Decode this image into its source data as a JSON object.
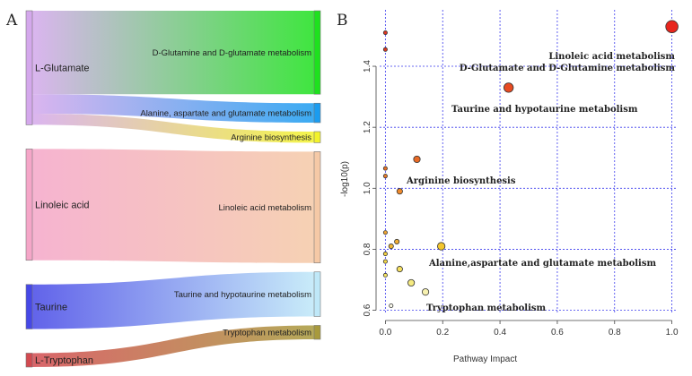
{
  "panels": {
    "a_letter": "A",
    "b_letter": "B"
  },
  "chart_data": [
    {
      "type": "sankey",
      "sources": [
        {
          "label": "L-Glutamate",
          "color": "#d4a8ec"
        },
        {
          "label": "Linoleic acid",
          "color": "#f5a6c8"
        },
        {
          "label": "Taurine",
          "color": "#4648e6"
        },
        {
          "label": "L-Tryptophan",
          "color": "#d24a50"
        }
      ],
      "targets": [
        {
          "label": "D-Glutamine and D-glutamate metabolism",
          "color": "#1ee11e"
        },
        {
          "label": "Alanine, aspartate and glutamate metabolism",
          "color": "#1a9cf0"
        },
        {
          "label": "Arginine biosynthesis",
          "color": "#f2f22a"
        },
        {
          "label": "Linoleic acid metabolism",
          "color": "#f5c9a6"
        },
        {
          "label": "Taurine and hypotaurine metabolism",
          "color": "#bfe8f8"
        },
        {
          "label": "Tryptophan metabolism",
          "color": "#a89a3c"
        }
      ],
      "links": [
        {
          "source": 0,
          "target": 0,
          "value": 6
        },
        {
          "source": 0,
          "target": 1,
          "value": 1.4
        },
        {
          "source": 0,
          "target": 2,
          "value": 0.8
        },
        {
          "source": 1,
          "target": 3,
          "value": 8
        },
        {
          "source": 2,
          "target": 4,
          "value": 3.2
        },
        {
          "source": 3,
          "target": 5,
          "value": 1
        }
      ]
    },
    {
      "type": "scatter",
      "xlabel": "Pathway Impact",
      "ylabel": "-log10(p)",
      "xlim": [
        -0.02,
        1.02
      ],
      "ylim": [
        0.59,
        1.585
      ],
      "xticks": [
        0.0,
        0.2,
        0.4,
        0.6,
        0.8,
        1.0
      ],
      "yticks": [
        0.6,
        0.8,
        1.0,
        1.2,
        1.4
      ],
      "xtick_labels": [
        "0.0",
        "0.2",
        "0.4",
        "0.6",
        "0.8",
        "1.0"
      ],
      "ytick_labels": [
        "0.6",
        "0.8",
        "1.0",
        "1.2",
        "1.4"
      ],
      "grid": true,
      "points": [
        {
          "x": 1.0,
          "y": 1.53,
          "size": 13,
          "color": "#e8261e"
        },
        {
          "x": 0.43,
          "y": 1.33,
          "size": 10,
          "color": "#e84b22"
        },
        {
          "x": 0.0,
          "y": 1.51,
          "size": 4,
          "color": "#dd3522"
        },
        {
          "x": 0.0,
          "y": 1.455,
          "size": 4,
          "color": "#dd3a22"
        },
        {
          "x": 0.11,
          "y": 1.095,
          "size": 7,
          "color": "#e86a26"
        },
        {
          "x": 0.0,
          "y": 1.065,
          "size": 4,
          "color": "#e57028"
        },
        {
          "x": 0.0,
          "y": 1.04,
          "size": 4,
          "color": "#e87a2a"
        },
        {
          "x": 0.05,
          "y": 0.99,
          "size": 6,
          "color": "#ef8a2c"
        },
        {
          "x": 0.0,
          "y": 0.855,
          "size": 4,
          "color": "#f0a532"
        },
        {
          "x": 0.04,
          "y": 0.825,
          "size": 5,
          "color": "#f0ae34"
        },
        {
          "x": 0.02,
          "y": 0.81,
          "size": 5,
          "color": "#f2b636"
        },
        {
          "x": 0.195,
          "y": 0.81,
          "size": 8,
          "color": "#f4c62e"
        },
        {
          "x": 0.0,
          "y": 0.785,
          "size": 4,
          "color": "#f4d040"
        },
        {
          "x": 0.0,
          "y": 0.76,
          "size": 4,
          "color": "#f4d848"
        },
        {
          "x": 0.05,
          "y": 0.735,
          "size": 6,
          "color": "#f6e060"
        },
        {
          "x": 0.0,
          "y": 0.715,
          "size": 4,
          "color": "#f6e464"
        },
        {
          "x": 0.09,
          "y": 0.69,
          "size": 7,
          "color": "#f5ea80"
        },
        {
          "x": 0.14,
          "y": 0.66,
          "size": 7,
          "color": "#f7f1b0"
        },
        {
          "x": 0.02,
          "y": 0.615,
          "size": 4,
          "color": "#fbfbee"
        }
      ],
      "annotations": [
        "Linoleic acid metabolism",
        "D-Glutamate and D-Glutamine metabolism",
        "Taurine and hypotaurine metabolism",
        "Arginine biosynthesis",
        "Alanine,aspartate and glutamate metabolism",
        "Tryptophan metabolism"
      ]
    }
  ]
}
